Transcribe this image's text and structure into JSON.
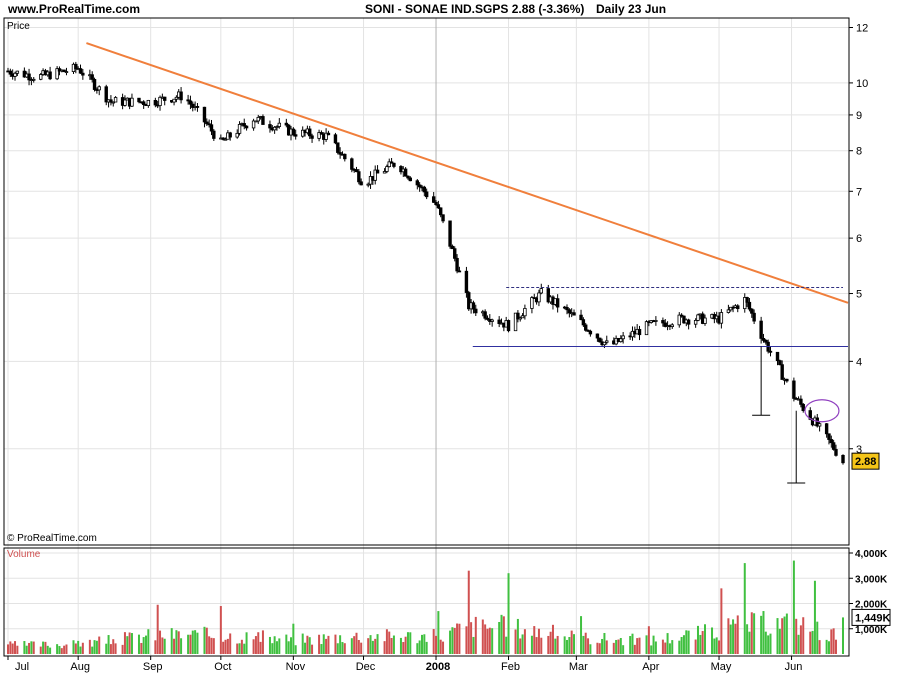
{
  "header": {
    "site": "www.ProRealTime.com",
    "symbol_line": "SONI - SONAE IND.SGPS    2.88 (-3.36%)",
    "timeframe": "Daily  23 Jun"
  },
  "panels": {
    "price_label": "Price",
    "volume_label": "Volume",
    "copyright": "© ProRealTime.com"
  },
  "colors": {
    "trendline": "#f07f3c",
    "volume_up": "#40c040",
    "volume_down": "#d05050",
    "price_badge": "#f5c518",
    "ellipse": "#9040c0",
    "support": "#3030a0"
  },
  "chart_data": [
    {
      "type": "candlestick",
      "title": "SONI - SONAE IND.SGPS",
      "ylabel": "Price",
      "y_scale": "log",
      "ylim": [
        2.2,
        12.3
      ],
      "y_ticks": [
        3,
        4,
        5,
        6,
        7,
        8,
        9,
        10,
        12
      ],
      "x_labels": [
        "Jul",
        "Aug",
        "Sep",
        "Oct",
        "Nov",
        "Dec",
        "2008",
        "Feb",
        "Mar",
        "Apr",
        "May",
        "Jun"
      ],
      "last_price": "2.88",
      "last_price_value": 2.88,
      "change": "-3.36%",
      "series": [
        {
          "name": "Close",
          "x": [
            "2007-07-02",
            "2007-07-15",
            "2007-08-01",
            "2007-08-15",
            "2007-09-01",
            "2007-09-15",
            "2007-10-01",
            "2007-10-15",
            "2007-11-01",
            "2007-11-15",
            "2007-12-01",
            "2007-12-15",
            "2008-01-01",
            "2008-01-15",
            "2008-02-01",
            "2008-02-15",
            "2008-03-01",
            "2008-03-15",
            "2008-04-01",
            "2008-04-15",
            "2008-05-01",
            "2008-05-12",
            "2008-05-20",
            "2008-06-01",
            "2008-06-10",
            "2008-06-23"
          ],
          "values": [
            10.4,
            10.2,
            10.5,
            9.4,
            9.4,
            9.6,
            8.2,
            8.9,
            8.5,
            8.4,
            7.2,
            7.7,
            6.7,
            4.8,
            4.5,
            5.0,
            4.6,
            4.2,
            4.5,
            4.6,
            4.6,
            4.9,
            4.3,
            3.6,
            3.3,
            2.88
          ]
        }
      ],
      "annotations": [
        {
          "type": "trendline",
          "from": {
            "x": "2007-07-15",
            "y": 11.4
          },
          "to": {
            "x": "2008-06-23",
            "y": 4.85
          }
        },
        {
          "type": "resistance",
          "y": 5.1,
          "from": "2008-01-31",
          "to": "2008-06-23",
          "style": "dashed"
        },
        {
          "type": "support",
          "y": 4.2,
          "from": "2008-01-15",
          "to": "2008-06-23",
          "style": "solid"
        },
        {
          "type": "measured-move",
          "x": "2008-05-19",
          "from_y": 4.2,
          "to_y": 3.35
        },
        {
          "type": "measured-move",
          "x": "2008-06-03",
          "from_y": 3.4,
          "to_y": 2.68
        },
        {
          "type": "ellipse",
          "x": "2008-06-14",
          "y": 3.4
        }
      ]
    },
    {
      "type": "bar",
      "title": "Volume",
      "ylim": [
        0,
        4000
      ],
      "y_ticks": [
        "1,000K",
        "2,000K",
        "3,000K",
        "4,000K"
      ],
      "last_volume": "1,449K",
      "last_volume_value": 1449,
      "series": [
        {
          "name": "Volume",
          "x": [
            "2007-07-02",
            "2007-08-01",
            "2007-09-04",
            "2007-10-01",
            "2007-11-01",
            "2007-12-01",
            "2008-01-02",
            "2008-01-15",
            "2008-02-01",
            "2008-03-03",
            "2008-04-01",
            "2008-05-02",
            "2008-05-12",
            "2008-06-02",
            "2008-06-11",
            "2008-06-23"
          ],
          "values": [
            380,
            520,
            1950,
            1900,
            1200,
            1800,
            1700,
            3300,
            3200,
            1500,
            1100,
            2600,
            3600,
            3700,
            2900,
            1449
          ]
        }
      ]
    }
  ]
}
